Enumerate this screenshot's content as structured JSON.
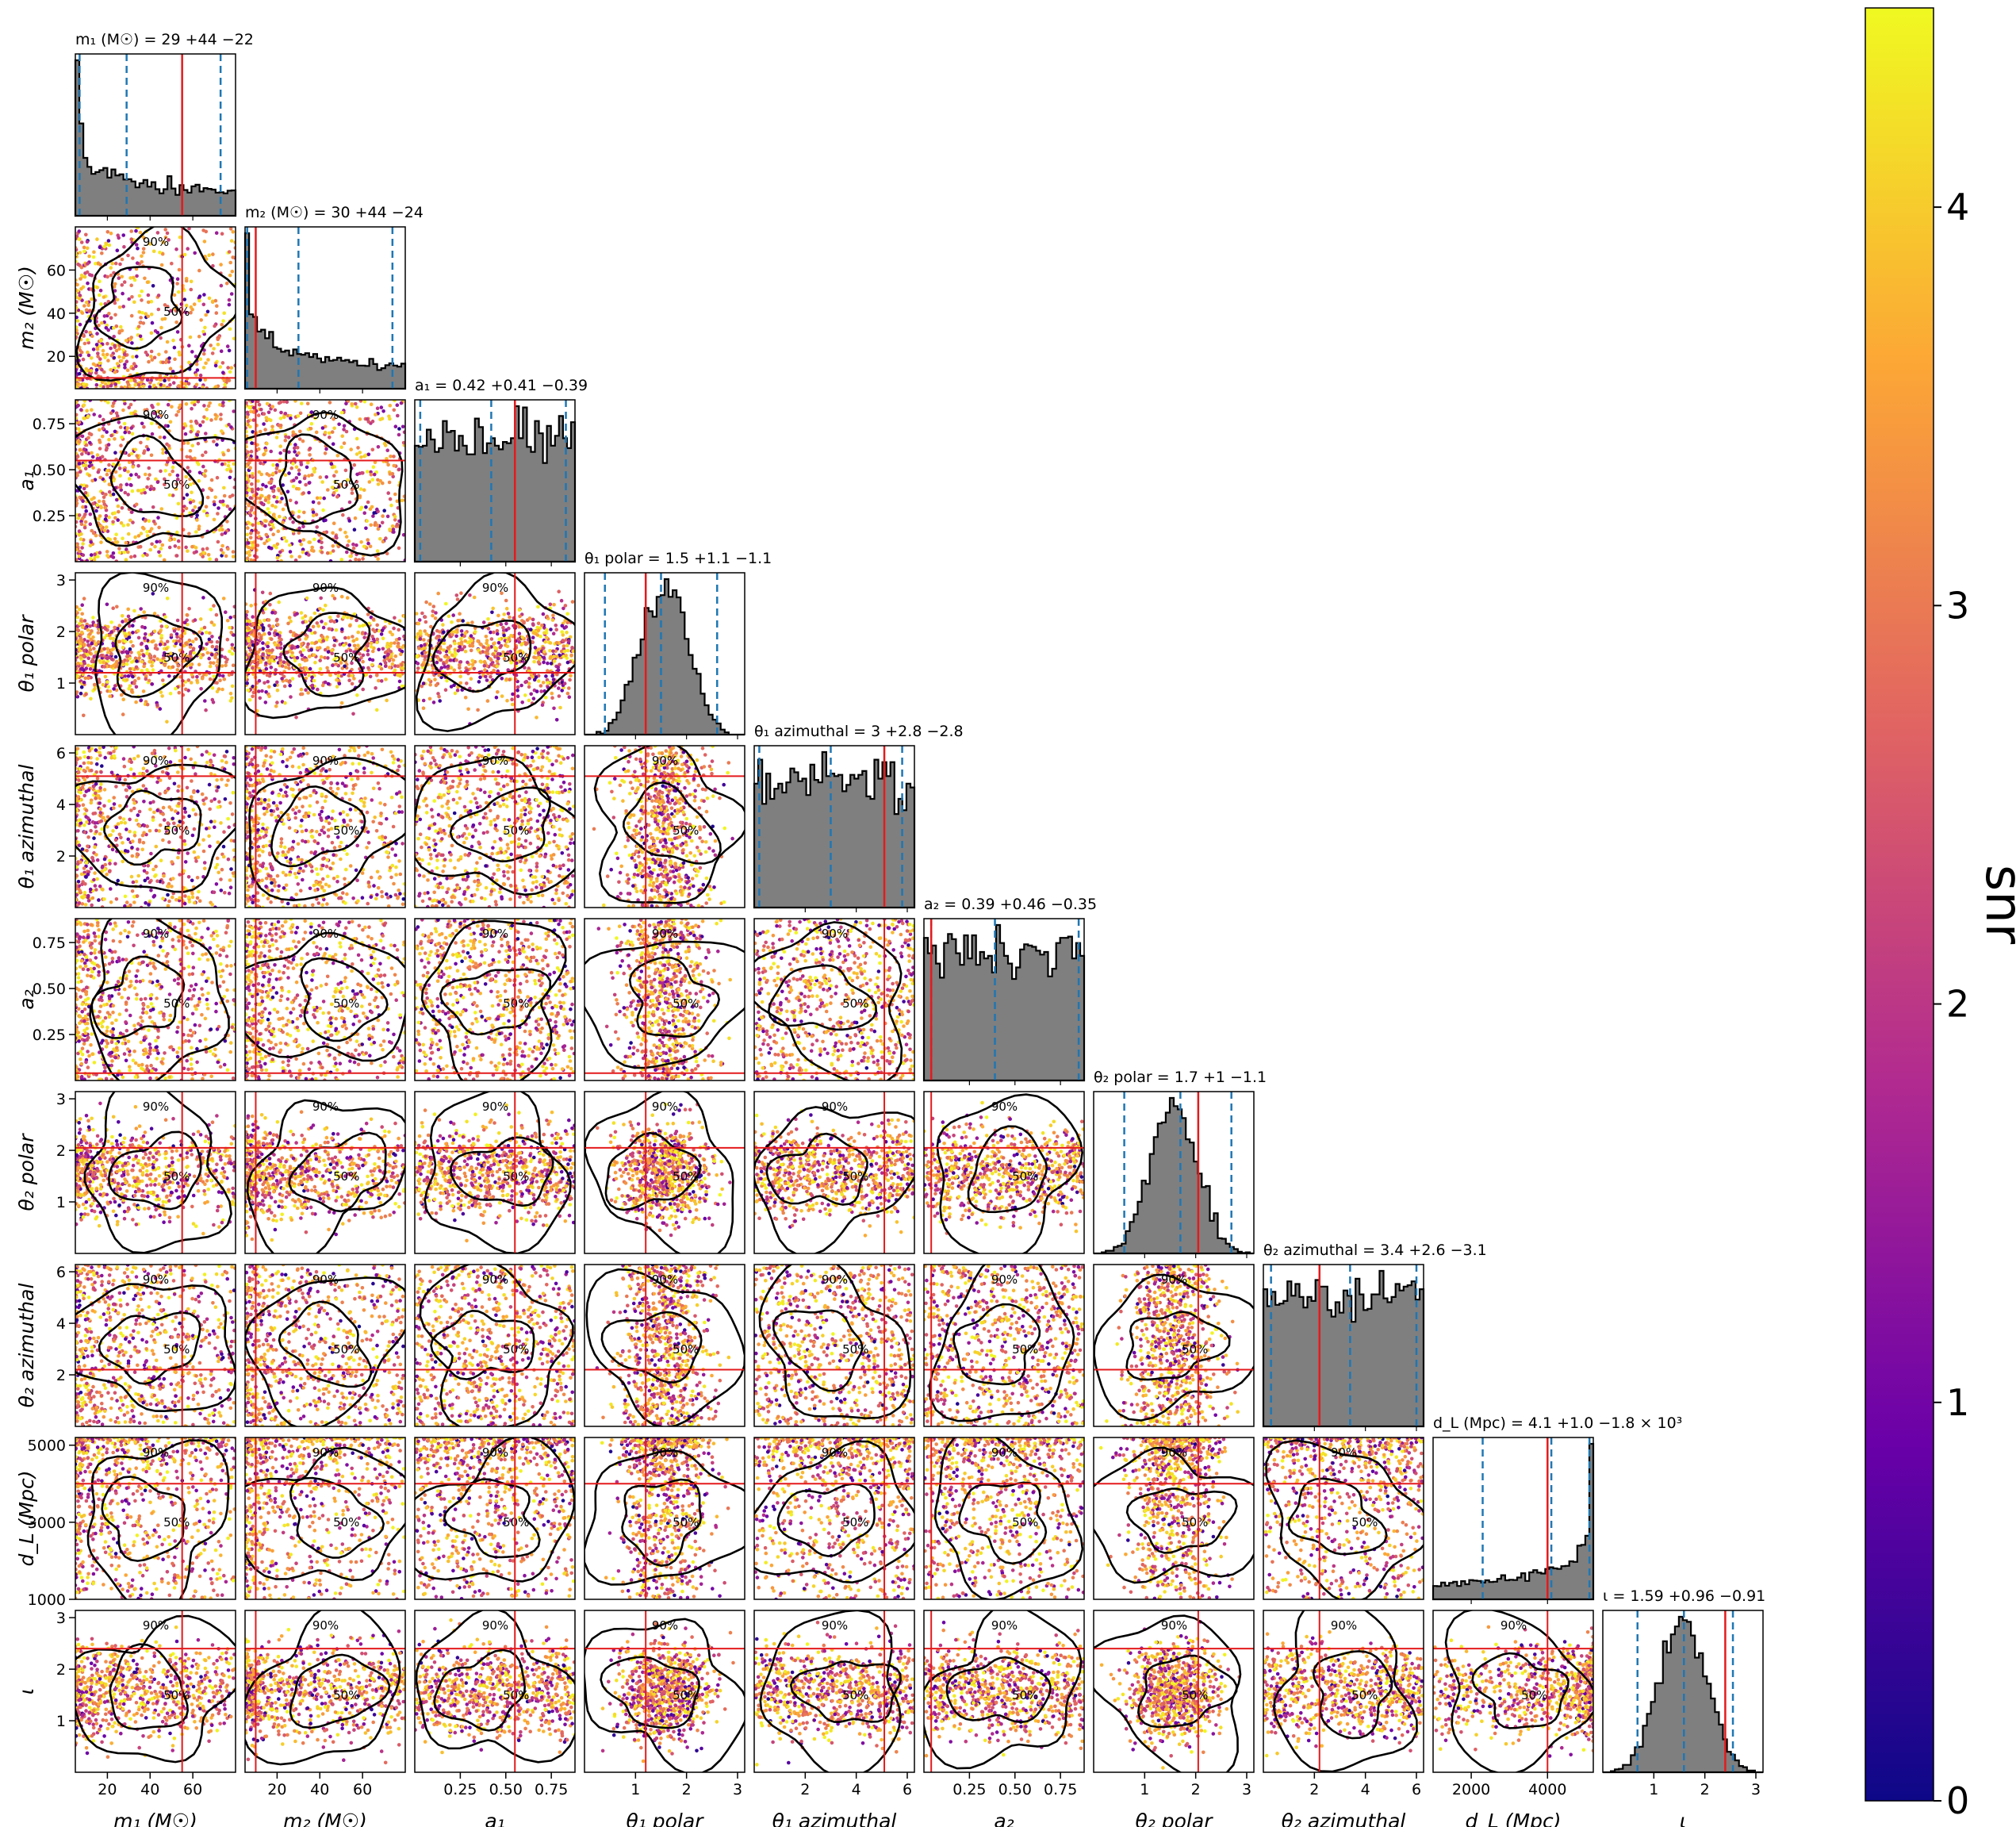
{
  "chart_data": {
    "type": "scatter",
    "colorbar": {
      "label": "snr",
      "range": [
        0,
        4.5
      ],
      "ticks": [
        "0",
        "1",
        "2",
        "3",
        "4"
      ],
      "colormap": "plasma",
      "colors": [
        "#0d0887",
        "#6a00a8",
        "#b12a90",
        "#e16462",
        "#fca636",
        "#f0f921"
      ]
    },
    "line_colors": {
      "truth": "#e41a1c",
      "quantiles": "#1f77b4",
      "histogram_fill": "#7f7f7f",
      "contours": "#000000"
    },
    "contour_labels": [
      "90%",
      "50%"
    ],
    "parameters": [
      {
        "key": "m1",
        "axis_label": "m₁ (M☉)",
        "title": "m₁ (M☉) = 29 +44 −22",
        "range": [
          5,
          80
        ],
        "ticks": [
          20,
          40,
          60
        ],
        "tick_labels": [
          "20",
          "40",
          "60"
        ],
        "truth": 55,
        "quantiles": [
          7,
          29,
          73
        ],
        "hist_shape": "falling"
      },
      {
        "key": "m2",
        "axis_label": "m₂ (M☉)",
        "title": "m₂ (M☉) = 30 +44 −24",
        "range": [
          5,
          80
        ],
        "ticks": [
          20,
          40,
          60
        ],
        "tick_labels": [
          "20",
          "40",
          "60"
        ],
        "truth": 10,
        "quantiles": [
          6,
          30,
          74
        ],
        "hist_shape": "falling"
      },
      {
        "key": "a1",
        "axis_label": "a₁",
        "title": "a₁ = 0.42 +0.41 −0.39",
        "range": [
          0,
          0.88
        ],
        "ticks": [
          0.25,
          0.5,
          0.75
        ],
        "tick_labels": [
          "0.25",
          "0.50",
          "0.75"
        ],
        "truth": 0.55,
        "quantiles": [
          0.03,
          0.42,
          0.83
        ],
        "hist_shape": "flat"
      },
      {
        "key": "theta1_polar",
        "axis_label": "θ₁ polar",
        "title": "θ₁ polar = 1.5 +1.1 −1.1",
        "range": [
          0,
          3.14
        ],
        "ticks": [
          1,
          2,
          3
        ],
        "tick_labels": [
          "1",
          "2",
          "3"
        ],
        "truth": 1.2,
        "quantiles": [
          0.4,
          1.5,
          2.6
        ],
        "hist_shape": "peaked"
      },
      {
        "key": "theta1_azimuthal",
        "axis_label": "θ₁ azimuthal",
        "title": "θ₁ azimuthal = 3 +2.8 −2.8",
        "range": [
          0,
          6.28
        ],
        "ticks": [
          2,
          4,
          6
        ],
        "tick_labels": [
          "2",
          "4",
          "6"
        ],
        "truth": 5.1,
        "quantiles": [
          0.2,
          3.0,
          5.8
        ],
        "hist_shape": "flat"
      },
      {
        "key": "a2",
        "axis_label": "a₂",
        "title": "a₂ = 0.39 +0.46 −0.35",
        "range": [
          0,
          0.88
        ],
        "ticks": [
          0.25,
          0.5,
          0.75
        ],
        "tick_labels": [
          "0.25",
          "0.50",
          "0.75"
        ],
        "truth": 0.04,
        "quantiles": [
          0.04,
          0.39,
          0.85
        ],
        "hist_shape": "flat"
      },
      {
        "key": "theta2_polar",
        "axis_label": "θ₂ polar",
        "title": "θ₂ polar = 1.7 +1 −1.1",
        "range": [
          0,
          3.14
        ],
        "ticks": [
          1,
          2,
          3
        ],
        "tick_labels": [
          "1",
          "2",
          "3"
        ],
        "truth": 2.05,
        "quantiles": [
          0.6,
          1.7,
          2.7
        ],
        "hist_shape": "peaked"
      },
      {
        "key": "theta2_azimuthal",
        "axis_label": "θ₂ azimuthal",
        "title": "θ₂ azimuthal = 3.4 +2.6 −3.1",
        "range": [
          0,
          6.28
        ],
        "ticks": [
          2,
          4,
          6
        ],
        "tick_labels": [
          "2",
          "4",
          "6"
        ],
        "truth": 2.2,
        "quantiles": [
          0.3,
          3.4,
          6.0
        ],
        "hist_shape": "flat"
      },
      {
        "key": "dL",
        "axis_label": "d_L (Mpc)",
        "title": "d_L (Mpc) = 4.1 +1.0 −1.8 × 10³",
        "range": [
          1000,
          5200
        ],
        "ticks": [
          2000,
          4000
        ],
        "tick_labels": [
          "2000",
          "4000"
        ],
        "y_ticks": [
          1000,
          3000,
          5000
        ],
        "y_tick_labels": [
          "1000",
          "3000",
          "5000"
        ],
        "truth": 4000,
        "quantiles": [
          2300,
          4100,
          5100
        ],
        "hist_shape": "rising"
      },
      {
        "key": "iota",
        "axis_label": "ι",
        "title": "ι = 1.59 +0.96 −0.91",
        "range": [
          0,
          3.14
        ],
        "ticks": [
          1,
          2,
          3
        ],
        "tick_labels": [
          "1",
          "2",
          "3"
        ],
        "truth": 2.4,
        "quantiles": [
          0.68,
          1.59,
          2.55
        ],
        "hist_shape": "peaked"
      }
    ]
  }
}
